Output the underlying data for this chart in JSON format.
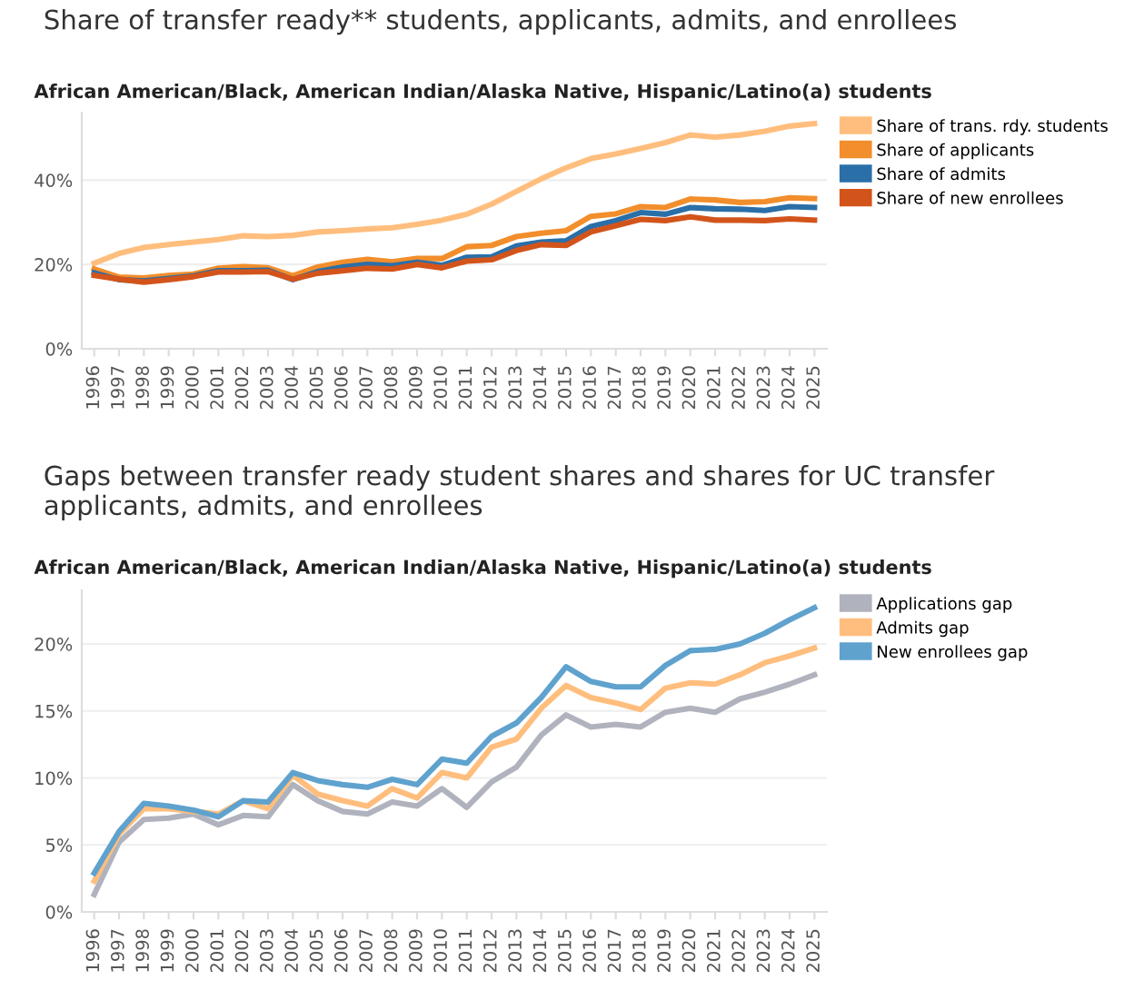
{
  "chart_data": [
    {
      "type": "line",
      "title": "Share of transfer ready** students, applicants, admits, and enrollees",
      "subtitle": "African American/Black, American Indian/Alaska Native, Hispanic/Latino(a) students",
      "categories": [
        "1996",
        "1997",
        "1998",
        "1999",
        "2000",
        "2001",
        "2002",
        "2003",
        "2004",
        "2005",
        "2006",
        "2007",
        "2008",
        "2009",
        "2010",
        "2011",
        "2012",
        "2013",
        "2014",
        "2015",
        "2016",
        "2017",
        "2018",
        "2019",
        "2020",
        "2021",
        "2022",
        "2023",
        "2024",
        "2025"
      ],
      "ylim": [
        0,
        56
      ],
      "yticks": [
        {
          "value": 0,
          "label": "0%"
        },
        {
          "value": 20,
          "label": "20%"
        },
        {
          "value": 40,
          "label": "40%"
        }
      ],
      "grid": "y",
      "legend": "top right",
      "series": [
        {
          "name": "Share of trans. rdy. students",
          "color": "#ffbe7d",
          "values": [
            20.3,
            22.6,
            24,
            24.7,
            25.3,
            25.9,
            26.8,
            26.6,
            26.9,
            27.7,
            28,
            28.4,
            28.7,
            29.5,
            30.5,
            31.9,
            34.3,
            37.3,
            40.3,
            42.9,
            45.1,
            46.2,
            47.5,
            48.9,
            50.7,
            50.2,
            50.7,
            51.6,
            52.8,
            53.4
          ]
        },
        {
          "name": "Share of applicants",
          "color": "#f28e2b",
          "values": [
            18.9,
            17,
            16.8,
            17.4,
            17.7,
            19.1,
            19.5,
            19.2,
            17.3,
            19.4,
            20.5,
            21.2,
            20.6,
            21.4,
            21.4,
            24.2,
            24.5,
            26.6,
            27.4,
            28,
            31.4,
            32,
            33.7,
            33.5,
            35.5,
            35.3,
            34.7,
            34.9,
            35.8,
            35.6
          ]
        },
        {
          "name": "Share of admits",
          "color": "#2a6fa8",
          "values": [
            18,
            16.4,
            16.1,
            16.7,
            17.3,
            18.5,
            18.5,
            18.6,
            16.4,
            18.3,
            19.4,
            20,
            19.7,
            20.5,
            19.8,
            21.7,
            21.8,
            24.4,
            25.3,
            25.6,
            29,
            30.4,
            32.3,
            31.9,
            33.5,
            33.2,
            33.1,
            32.8,
            33.7,
            33.5
          ]
        },
        {
          "name": "Share of new enrollees",
          "color": "#d3541b",
          "values": [
            17.4,
            16.5,
            15.8,
            16.4,
            17.1,
            18.2,
            18.2,
            18.3,
            16.5,
            17.9,
            18.5,
            19.1,
            18.9,
            20,
            19.2,
            20.8,
            21.1,
            23.3,
            24.7,
            24.5,
            27.7,
            29.2,
            30.7,
            30.4,
            31.3,
            30.5,
            30.5,
            30.4,
            30.8,
            30.5
          ]
        }
      ]
    },
    {
      "type": "line",
      "title": "Gaps between transfer ready student shares and shares for UC transfer applicants, admits, and enrollees",
      "subtitle": "African American/Black, American Indian/Alaska Native, Hispanic/Latino(a) students",
      "categories": [
        "1996",
        "1997",
        "1998",
        "1999",
        "2000",
        "2001",
        "2002",
        "2003",
        "2004",
        "2005",
        "2006",
        "2007",
        "2008",
        "2009",
        "2010",
        "2011",
        "2012",
        "2013",
        "2014",
        "2015",
        "2016",
        "2017",
        "2018",
        "2019",
        "2020",
        "2021",
        "2022",
        "2023",
        "2024",
        "2025"
      ],
      "ylim": [
        0,
        24
      ],
      "yticks": [
        {
          "value": 0,
          "label": "0%"
        },
        {
          "value": 5,
          "label": "5%"
        },
        {
          "value": 10,
          "label": "10%"
        },
        {
          "value": 15,
          "label": "15%"
        },
        {
          "value": 20,
          "label": "20%"
        }
      ],
      "grid": "y",
      "legend": "top right",
      "series": [
        {
          "name": "Applications gap",
          "color": "#b0b3bd",
          "values": [
            1.3,
            5.2,
            6.9,
            7.0,
            7.3,
            6.5,
            7.2,
            7.1,
            9.5,
            8.3,
            7.5,
            7.3,
            8.2,
            7.9,
            9.2,
            7.8,
            9.7,
            10.8,
            13.2,
            14.7,
            13.8,
            14,
            13.8,
            14.9,
            15.2,
            14.9,
            15.9,
            16.4,
            17,
            17.7
          ]
        },
        {
          "name": "Admits gap",
          "color": "#ffbe7d",
          "values": [
            2.3,
            5.8,
            7.7,
            7.7,
            7.5,
            7.3,
            8.3,
            7.7,
            10.2,
            8.8,
            8.3,
            7.9,
            9.2,
            8.5,
            10.4,
            10.0,
            12.3,
            12.9,
            15.2,
            16.9,
            16,
            15.6,
            15.1,
            16.7,
            17.1,
            17,
            17.7,
            18.6,
            19.1,
            19.7
          ]
        },
        {
          "name": "New enrollees gap",
          "color": "#5fa2ce",
          "values": [
            2.9,
            6,
            8.1,
            7.9,
            7.6,
            7.1,
            8.3,
            8.2,
            10.4,
            9.8,
            9.5,
            9.3,
            9.9,
            9.5,
            11.4,
            11.1,
            13.1,
            14.1,
            16,
            18.3,
            17.2,
            16.8,
            16.8,
            18.4,
            19.5,
            19.6,
            20,
            20.8,
            21.8,
            22.7
          ]
        }
      ]
    }
  ]
}
